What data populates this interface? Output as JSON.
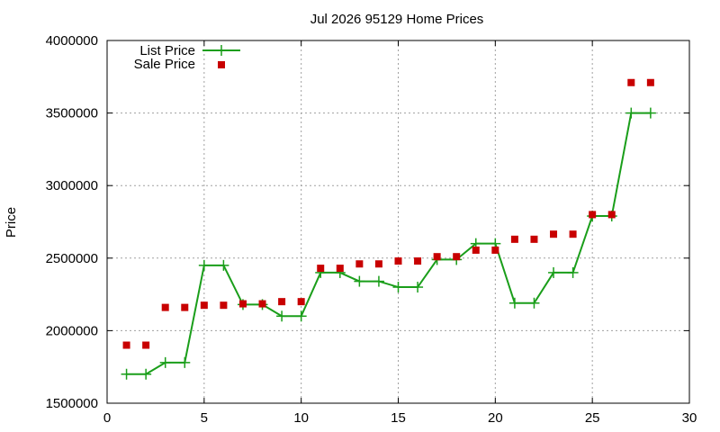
{
  "chart_data": {
    "type": "line",
    "title": "Jul 2026 95129 Home Prices",
    "xlabel": "",
    "ylabel": "Price",
    "xlim": [
      0,
      30
    ],
    "ylim": [
      1500000,
      4000000
    ],
    "xticks": [
      0,
      5,
      10,
      15,
      20,
      25,
      30
    ],
    "yticks": [
      1500000,
      2000000,
      2500000,
      3000000,
      3500000,
      4000000
    ],
    "grid": true,
    "legend_position": "top-left",
    "series": [
      {
        "name": "List Price",
        "style": "line-with-plus-markers",
        "color": "#1a9e1a",
        "x": [
          1,
          2,
          3,
          4,
          5,
          6,
          7,
          8,
          9,
          10,
          11,
          12,
          13,
          14,
          15,
          16,
          17,
          18,
          19,
          20,
          21,
          22,
          23,
          24,
          25,
          26,
          27,
          28
        ],
        "values": [
          1700000,
          1700000,
          1780000,
          1780000,
          2450000,
          2450000,
          2180000,
          2180000,
          2100000,
          2100000,
          2400000,
          2400000,
          2340000,
          2340000,
          2300000,
          2300000,
          2490000,
          2490000,
          2600000,
          2600000,
          2190000,
          2190000,
          2400000,
          2400000,
          2790000,
          2790000,
          3500000,
          3500000
        ]
      },
      {
        "name": "Sale Price",
        "style": "square-markers",
        "color": "#c80000",
        "x": [
          1,
          2,
          3,
          4,
          5,
          6,
          7,
          8,
          9,
          10,
          11,
          12,
          13,
          14,
          15,
          16,
          17,
          18,
          19,
          20,
          21,
          22,
          23,
          24,
          25,
          26,
          27,
          28
        ],
        "values": [
          1900000,
          1900000,
          2160000,
          2160000,
          2175000,
          2175000,
          2185000,
          2185000,
          2200000,
          2200000,
          2430000,
          2430000,
          2460000,
          2460000,
          2480000,
          2480000,
          2510000,
          2510000,
          2555000,
          2555000,
          2630000,
          2630000,
          2665000,
          2665000,
          2800000,
          2800000,
          3710000,
          3710000
        ]
      }
    ]
  }
}
